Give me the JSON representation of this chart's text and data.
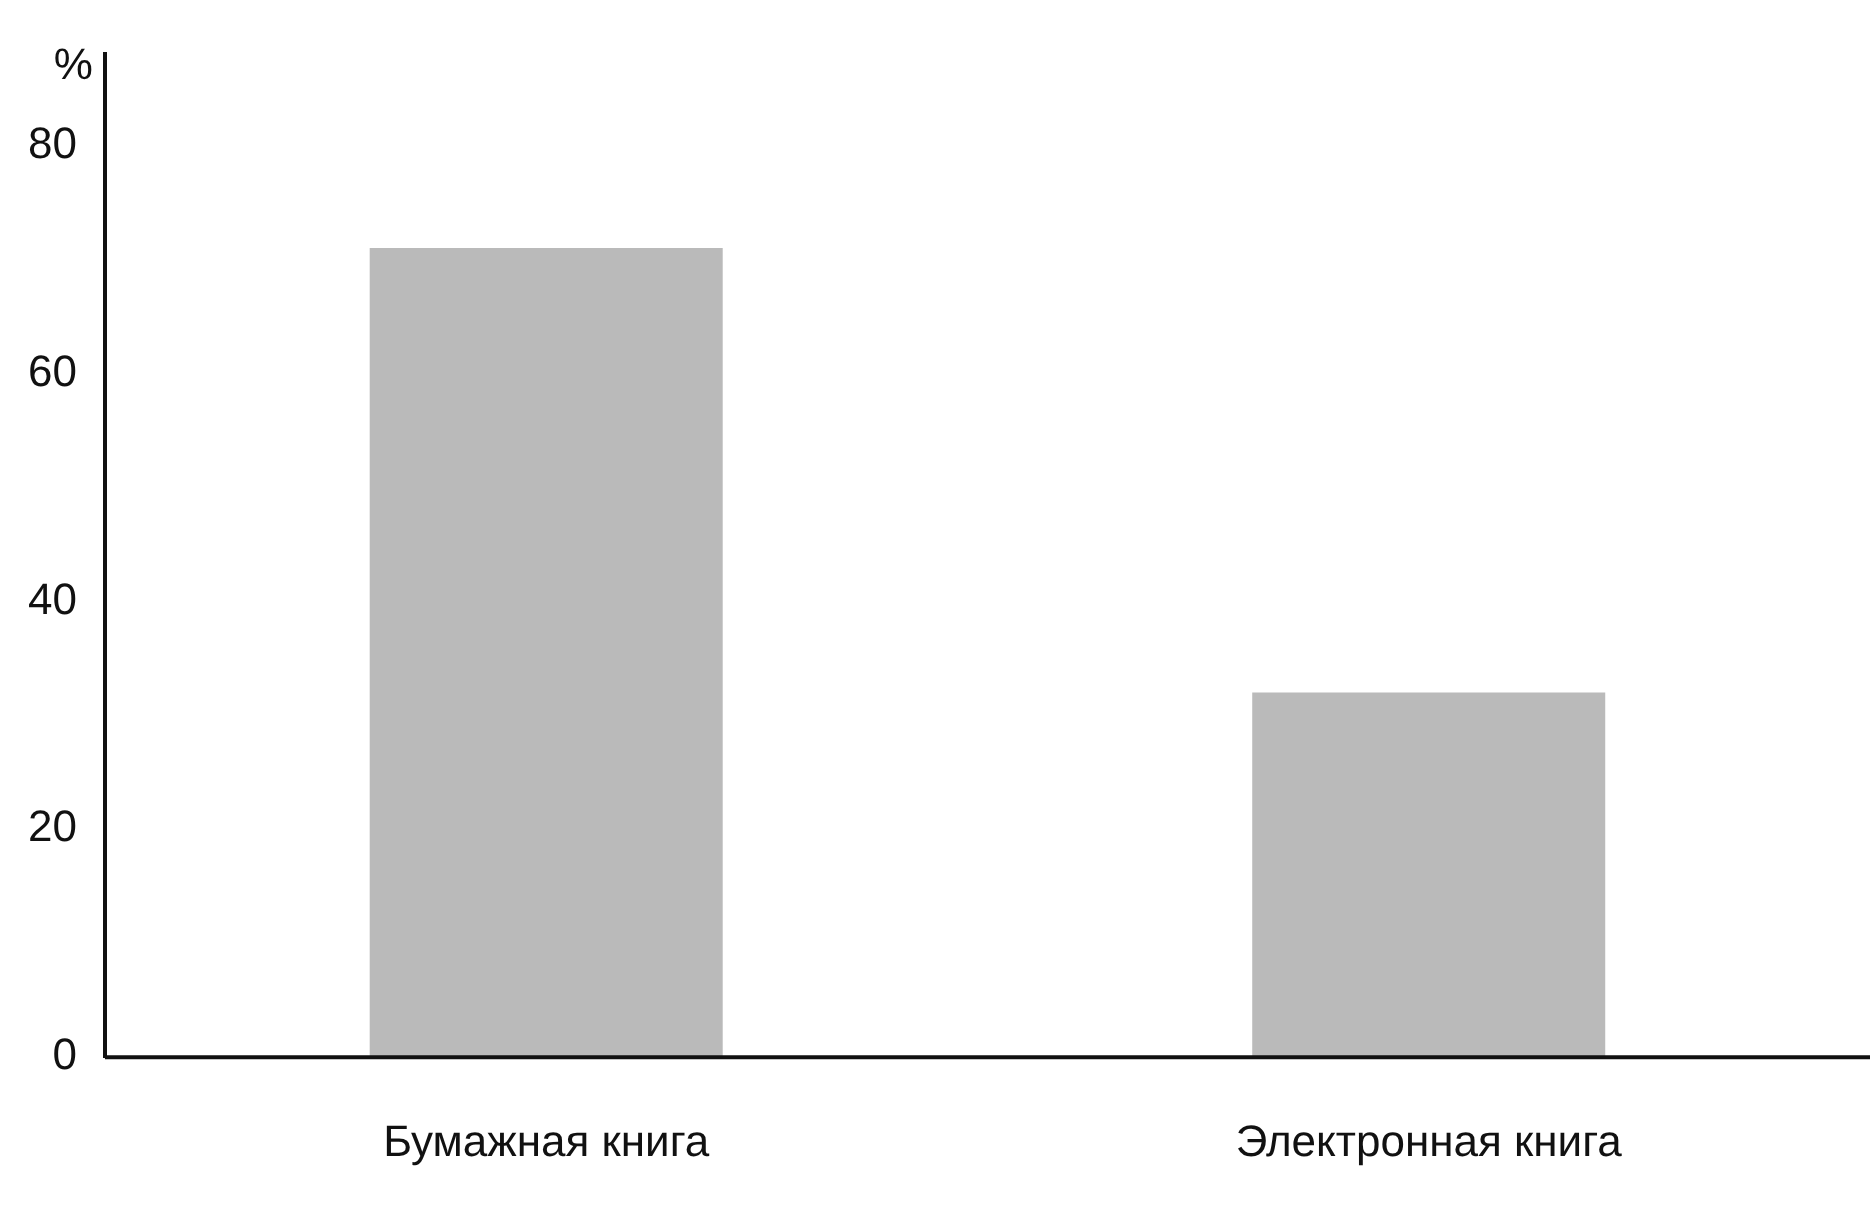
{
  "chart_data": {
    "type": "bar",
    "ylabel": "%",
    "categories": [
      "Бумажная книга",
      "Электронная книга"
    ],
    "values": [
      71,
      32
    ],
    "color": "#bababa",
    "ylim": [
      0,
      88
    ],
    "yticks": [
      0,
      20,
      40,
      60,
      80
    ],
    "grid": false
  }
}
